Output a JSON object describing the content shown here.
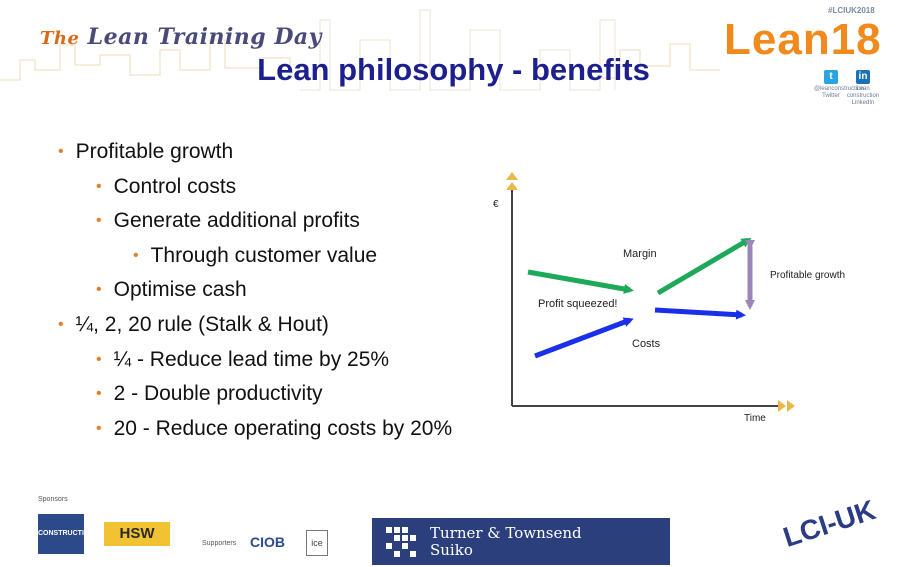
{
  "header": {
    "event_logo_prefix": "The",
    "event_logo_text": "Lean Training Day",
    "hashtag": "#LCIUK2018",
    "brand_logo": "Lean18",
    "social": [
      {
        "icon": "twitter-icon",
        "letter": "t",
        "color": "#2aa4e0",
        "caption_line1": "@leanconstruction",
        "caption_line2": "Twitter"
      },
      {
        "icon": "linkedin-icon",
        "letter": "in",
        "color": "#1a72b4",
        "caption_line1": "Lean construction",
        "caption_line2": "LinkedIn"
      }
    ]
  },
  "slide": {
    "title": "Lean philosophy - benefits",
    "bullets": [
      {
        "level": 0,
        "text": "Profitable growth"
      },
      {
        "level": 1,
        "text": "Control costs"
      },
      {
        "level": 1,
        "text": "Generate additional profits"
      },
      {
        "level": 2,
        "text": "Through customer value"
      },
      {
        "level": 1,
        "text": "Optimise cash"
      },
      {
        "level": 0,
        "text": "¼, 2, 20 rule (Stalk & Hout)"
      },
      {
        "level": 1,
        "text": "¼ - Reduce lead time by 25%"
      },
      {
        "level": 1,
        "text": "2 - Double productivity"
      },
      {
        "level": 1,
        "text": "20 - Reduce operating costs by 20%"
      }
    ]
  },
  "diagram": {
    "y_axis_label": "€",
    "x_axis_label": "Time",
    "labels": {
      "margin": "Margin",
      "profitable_growth": "Profitable growth",
      "profit_squeezed": "Profit squeezed!",
      "costs": "Costs"
    },
    "colors": {
      "green": "#1ea85a",
      "blue": "#1a2fe8",
      "purple": "#9a86b8",
      "axis": "#444444",
      "arrow_tip": "#e8b84a"
    }
  },
  "footer": {
    "sponsors_label": "Sponsors",
    "supporters_label": "Supporters",
    "sponsor_logos": [
      "CONSTRUCTION",
      "HSW"
    ],
    "supporter_logos": [
      "CIOB",
      "ice"
    ],
    "main_sponsor_line1": "Turner & Townsend",
    "main_sponsor_line2": "Suiko",
    "lci_logo": "LCI-UK"
  }
}
